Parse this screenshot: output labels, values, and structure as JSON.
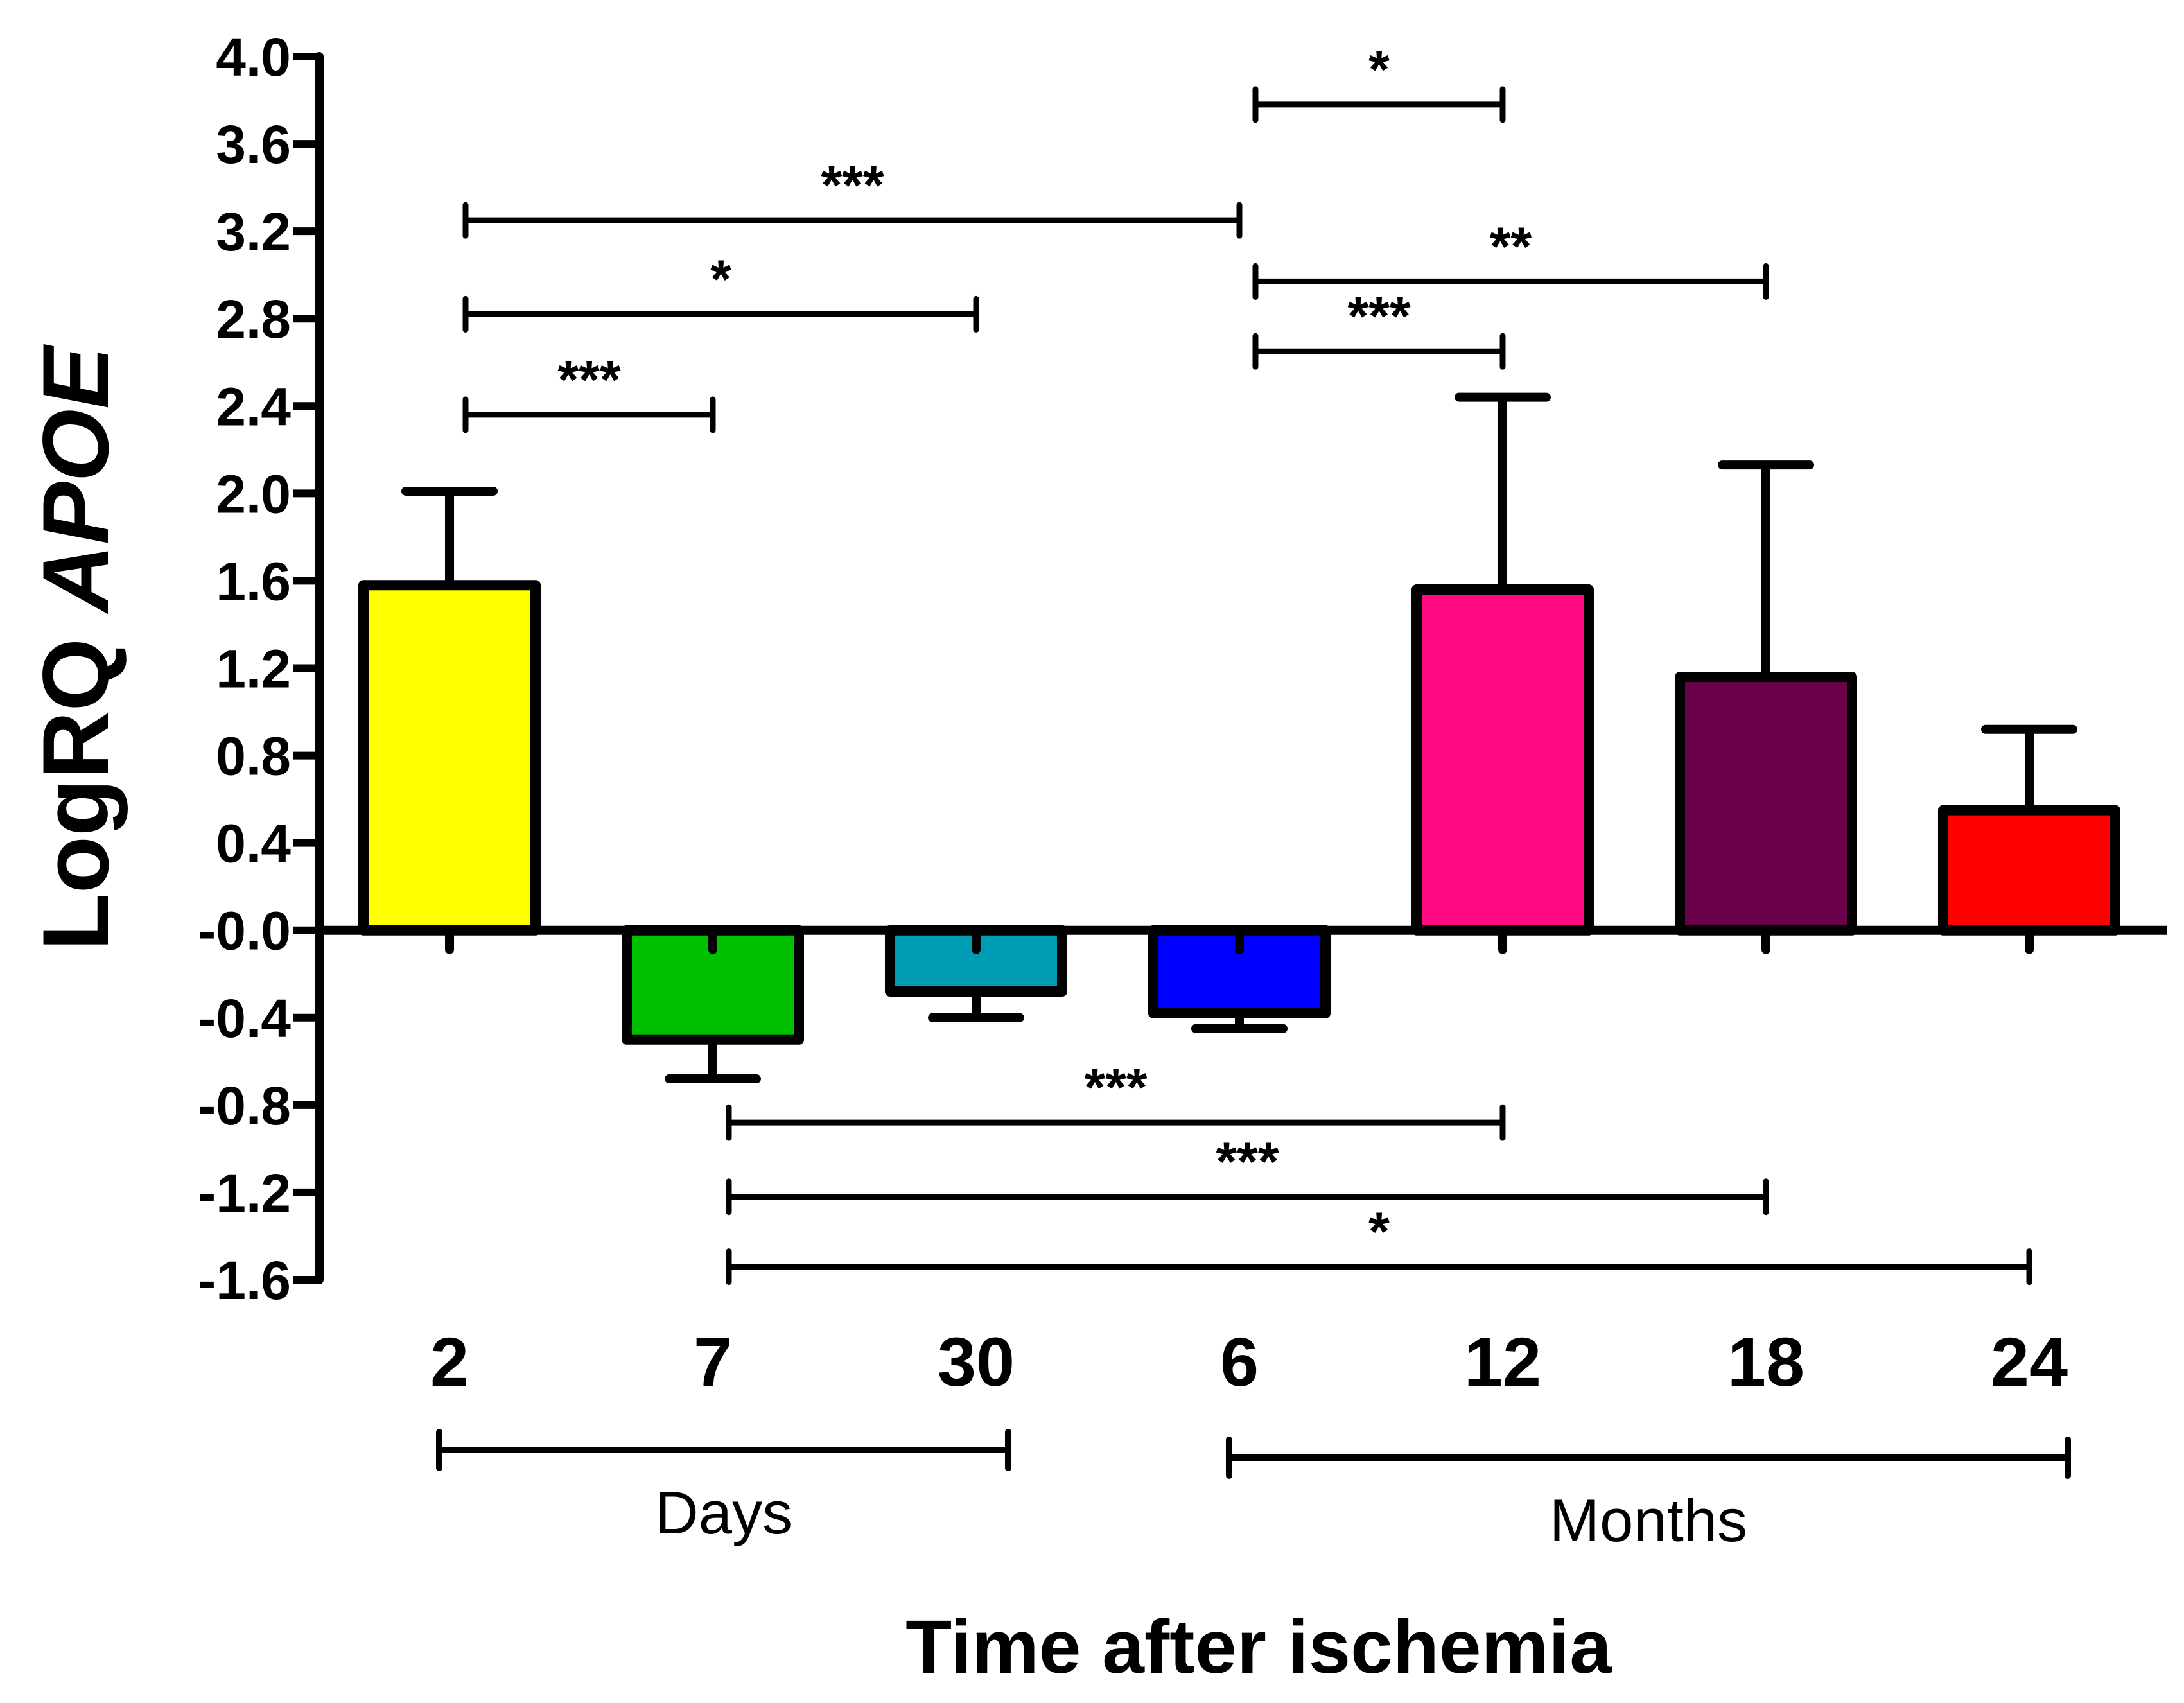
{
  "chart_data": {
    "type": "bar",
    "title": "",
    "ylabel_prefix": "LogRQ ",
    "ylabel_gene": "APOE",
    "xlabel": "Time after ischemia",
    "ylim": [
      -1.6,
      4.0
    ],
    "ytick_step": 0.4,
    "yticks": [
      "4.0",
      "3.6",
      "3.2",
      "2.8",
      "2.4",
      "2.0",
      "1.6",
      "1.2",
      "0.8",
      "0.4",
      "-0.0",
      "-0.4",
      "-0.8",
      "-1.2",
      "-1.6"
    ],
    "categories": [
      "2",
      "7",
      "30",
      "6",
      "12",
      "18",
      "24"
    ],
    "values": [
      1.58,
      -0.5,
      -0.28,
      -0.38,
      1.56,
      1.16,
      0.55
    ],
    "errors": [
      0.43,
      0.18,
      0.12,
      0.07,
      0.88,
      0.97,
      0.37
    ],
    "colors": [
      "#ffff00",
      "#00c000",
      "#009cb4",
      "#0000ff",
      "#ff0a82",
      "#6b004b",
      "#ff0000"
    ],
    "groups": [
      {
        "label": "Days",
        "from": 0,
        "to": 2
      },
      {
        "label": "Months",
        "from": 3,
        "to": 6
      }
    ],
    "significance": [
      {
        "from": 3,
        "to": 4,
        "y": 3.78,
        "label": "*"
      },
      {
        "from": 0,
        "to": 3,
        "y": 3.25,
        "label": "***"
      },
      {
        "from": 3,
        "to": 5,
        "y": 2.97,
        "label": "**"
      },
      {
        "from": 0,
        "to": 2,
        "y": 2.82,
        "label": "*"
      },
      {
        "from": 3,
        "to": 4,
        "y": 2.65,
        "label": "***"
      },
      {
        "from": 0,
        "to": 1,
        "y": 2.36,
        "label": "***"
      },
      {
        "from": 1,
        "to": 4,
        "y": -0.88,
        "label": "***"
      },
      {
        "from": 1,
        "to": 5,
        "y": -1.22,
        "label": "***"
      },
      {
        "from": 1,
        "to": 6,
        "y": -1.54,
        "label": "*"
      }
    ]
  }
}
